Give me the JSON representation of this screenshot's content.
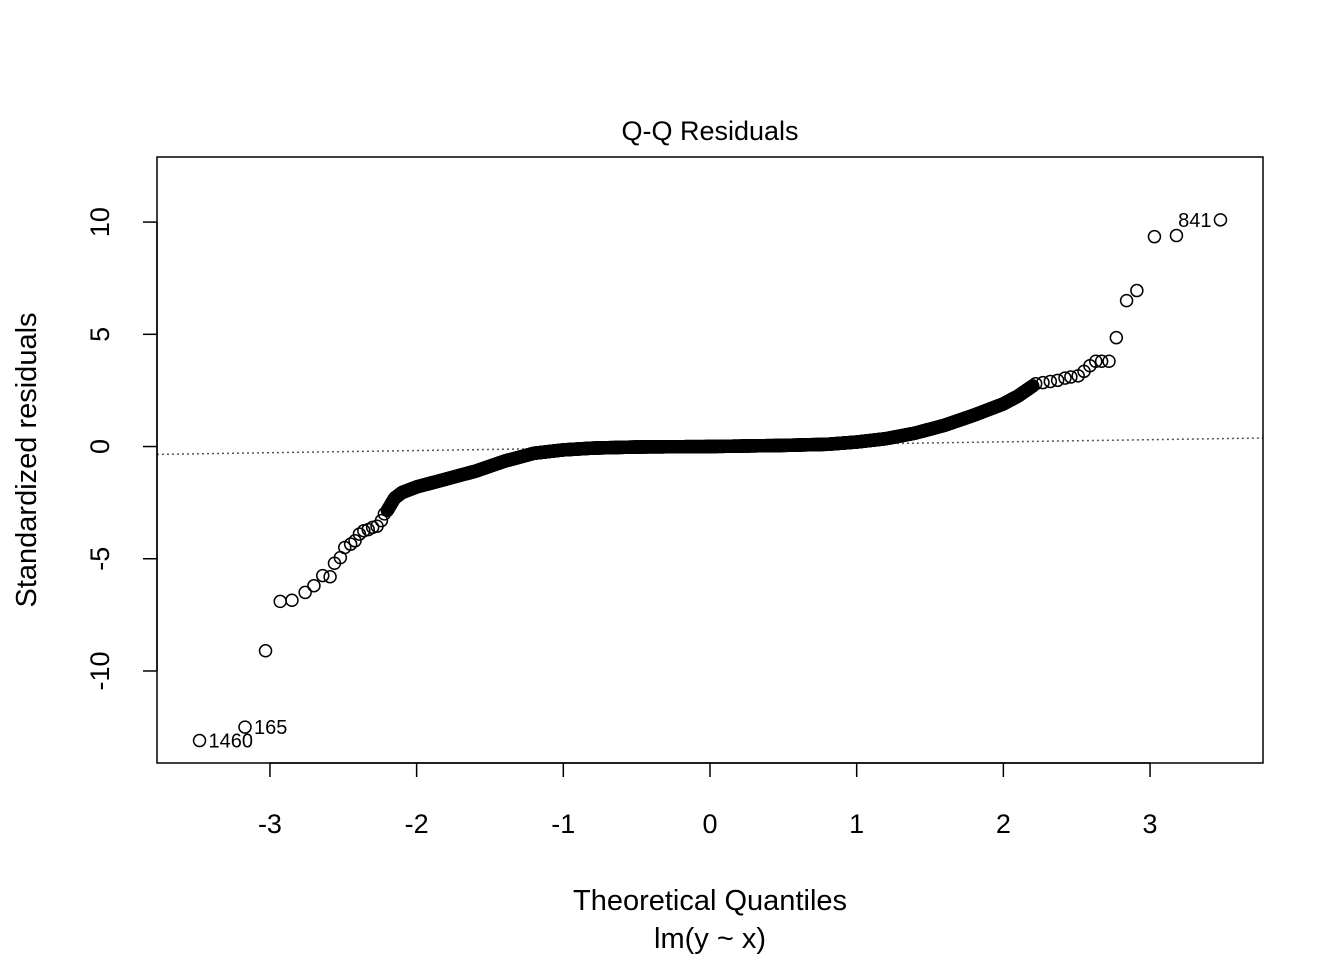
{
  "chart_data": {
    "type": "scatter",
    "title": "Q-Q Residuals",
    "xlabel": "Theoretical Quantiles",
    "xlabel2": "lm(y ~ x)",
    "ylabel": "Standardized residuals",
    "xlim": [
      -3.77,
      3.77
    ],
    "ylim": [
      -14.1,
      12.9
    ],
    "xticks": [
      -3,
      -2,
      -1,
      0,
      1,
      2,
      3
    ],
    "xtick_labels": [
      "-3",
      "-2",
      "-1",
      "0",
      "1",
      "2",
      "3"
    ],
    "yticks": [
      -10,
      -5,
      0,
      5,
      10
    ],
    "ytick_labels": [
      "-10",
      "-5",
      "0",
      "5",
      "10"
    ],
    "grid": false,
    "reference_line": {
      "x": [
        -3.77,
        3.77
      ],
      "y": [
        -0.35,
        0.38
      ]
    },
    "outliers": [
      {
        "x": -3.48,
        "y": -13.1,
        "label": "1460"
      },
      {
        "x": -3.17,
        "y": -12.5,
        "label": "165"
      },
      {
        "x": -3.03,
        "y": -9.1,
        "label": ""
      },
      {
        "x": -2.93,
        "y": -6.9,
        "label": ""
      },
      {
        "x": -2.85,
        "y": -6.85,
        "label": ""
      },
      {
        "x": -2.76,
        "y": -6.5,
        "label": ""
      },
      {
        "x": -2.7,
        "y": -6.2,
        "label": ""
      },
      {
        "x": -2.64,
        "y": -5.75,
        "label": ""
      },
      {
        "x": -2.59,
        "y": -5.8,
        "label": ""
      },
      {
        "x": -2.56,
        "y": -5.2,
        "label": ""
      },
      {
        "x": -2.52,
        "y": -4.95,
        "label": ""
      },
      {
        "x": -2.49,
        "y": -4.5,
        "label": ""
      },
      {
        "x": -2.45,
        "y": -4.35,
        "label": ""
      },
      {
        "x": -2.42,
        "y": -4.2,
        "label": ""
      },
      {
        "x": -2.39,
        "y": -3.9,
        "label": ""
      },
      {
        "x": -2.36,
        "y": -3.75,
        "label": ""
      },
      {
        "x": -2.33,
        "y": -3.7,
        "label": ""
      },
      {
        "x": -2.3,
        "y": -3.6,
        "label": ""
      },
      {
        "x": -2.27,
        "y": -3.55,
        "label": ""
      },
      {
        "x": -2.24,
        "y": -3.3,
        "label": ""
      },
      {
        "x": -2.22,
        "y": -3.0,
        "label": ""
      },
      {
        "x": 2.22,
        "y": 2.8,
        "label": ""
      },
      {
        "x": 2.27,
        "y": 2.85,
        "label": ""
      },
      {
        "x": 2.32,
        "y": 2.9,
        "label": ""
      },
      {
        "x": 2.37,
        "y": 2.95,
        "label": ""
      },
      {
        "x": 2.42,
        "y": 3.05,
        "label": ""
      },
      {
        "x": 2.46,
        "y": 3.1,
        "label": ""
      },
      {
        "x": 2.51,
        "y": 3.15,
        "label": ""
      },
      {
        "x": 2.55,
        "y": 3.35,
        "label": ""
      },
      {
        "x": 2.59,
        "y": 3.6,
        "label": ""
      },
      {
        "x": 2.63,
        "y": 3.8,
        "label": ""
      },
      {
        "x": 2.67,
        "y": 3.8,
        "label": ""
      },
      {
        "x": 2.72,
        "y": 3.8,
        "label": ""
      },
      {
        "x": 2.77,
        "y": 4.85,
        "label": ""
      },
      {
        "x": 2.84,
        "y": 6.5,
        "label": ""
      },
      {
        "x": 2.91,
        "y": 6.95,
        "label": ""
      },
      {
        "x": 3.03,
        "y": 9.35,
        "label": ""
      },
      {
        "x": 3.18,
        "y": 9.4,
        "label": ""
      },
      {
        "x": 3.48,
        "y": 10.1,
        "label": "841"
      }
    ],
    "body_curve": [
      [
        -2.2,
        -2.85
      ],
      [
        -2.15,
        -2.3
      ],
      [
        -2.1,
        -2.05
      ],
      [
        -2.0,
        -1.8
      ],
      [
        -1.8,
        -1.45
      ],
      [
        -1.6,
        -1.1
      ],
      [
        -1.4,
        -0.65
      ],
      [
        -1.2,
        -0.3
      ],
      [
        -1.0,
        -0.15
      ],
      [
        -0.8,
        -0.07
      ],
      [
        -0.5,
        -0.02
      ],
      [
        0.0,
        0.0
      ],
      [
        0.5,
        0.05
      ],
      [
        0.8,
        0.1
      ],
      [
        1.0,
        0.2
      ],
      [
        1.2,
        0.35
      ],
      [
        1.4,
        0.6
      ],
      [
        1.6,
        0.95
      ],
      [
        1.8,
        1.4
      ],
      [
        2.0,
        1.9
      ],
      [
        2.1,
        2.25
      ],
      [
        2.2,
        2.7
      ]
    ],
    "body_point_count": 1400
  }
}
